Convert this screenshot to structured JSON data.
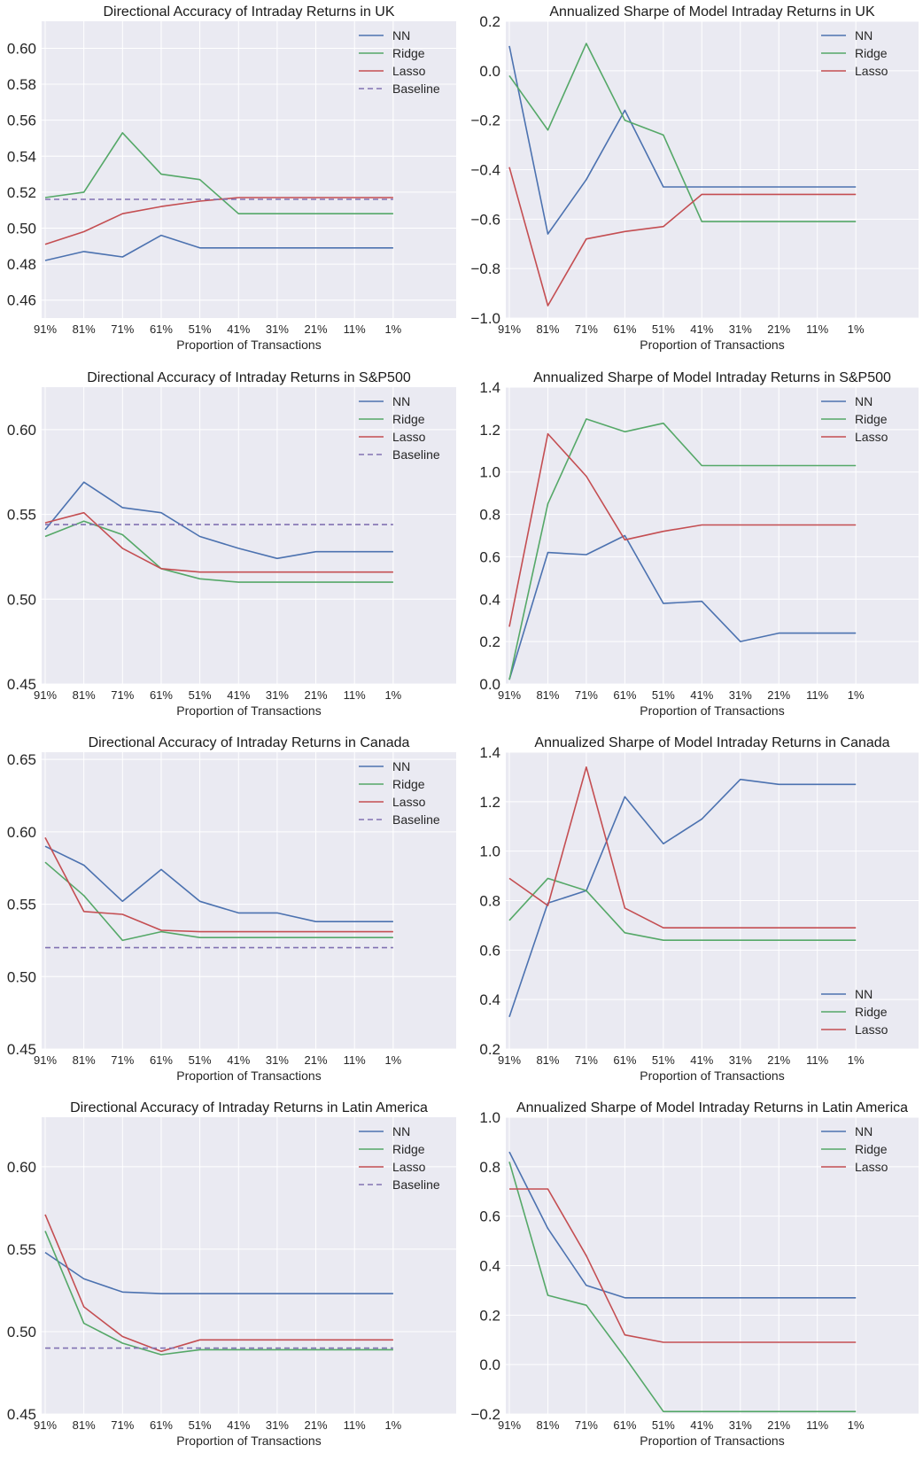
{
  "chart_data": [
    {
      "type": "line",
      "title": "Directional Accuracy of Intraday Returns in UK",
      "xlabel": "Proportion of Transactions",
      "ylabel": "",
      "categories": [
        "91%",
        "81%",
        "71%",
        "61%",
        "51%",
        "41%",
        "31%",
        "21%",
        "11%",
        "1%"
      ],
      "ylim": [
        0.45,
        0.615
      ],
      "yticks": [
        0.46,
        0.48,
        0.5,
        0.52,
        0.54,
        0.56,
        0.58,
        0.6
      ],
      "ytick_labels": [
        "0.46",
        "0.48",
        "0.50",
        "0.52",
        "0.54",
        "0.56",
        "0.58",
        "0.60"
      ],
      "legend": "top-right",
      "grid": true,
      "series": [
        {
          "name": "NN",
          "color": "#4c72b0",
          "dashed": false,
          "values": [
            0.482,
            0.487,
            0.484,
            0.496,
            0.489,
            0.489,
            0.489,
            0.489,
            0.489,
            0.489
          ]
        },
        {
          "name": "Ridge",
          "color": "#55a868",
          "dashed": false,
          "values": [
            0.517,
            0.52,
            0.553,
            0.53,
            0.527,
            0.508,
            0.508,
            0.508,
            0.508,
            0.508
          ]
        },
        {
          "name": "Lasso",
          "color": "#c44e52",
          "dashed": false,
          "values": [
            0.491,
            0.498,
            0.508,
            0.512,
            0.515,
            0.517,
            0.517,
            0.517,
            0.517,
            0.517
          ]
        },
        {
          "name": "Baseline",
          "color": "#8172b2",
          "dashed": true,
          "values": [
            0.516,
            0.516,
            0.516,
            0.516,
            0.516,
            0.516,
            0.516,
            0.516,
            0.516,
            0.516
          ]
        }
      ]
    },
    {
      "type": "line",
      "title": "Annualized Sharpe of Model Intraday Returns in UK",
      "xlabel": "Proportion of Transactions",
      "ylabel": "",
      "categories": [
        "91%",
        "81%",
        "71%",
        "61%",
        "51%",
        "41%",
        "31%",
        "21%",
        "11%",
        "1%"
      ],
      "ylim": [
        -1.0,
        0.2
      ],
      "yticks": [
        -1.0,
        -0.8,
        -0.6,
        -0.4,
        -0.2,
        0.0,
        0.2
      ],
      "ytick_labels": [
        "−1.0",
        "−0.8",
        "−0.6",
        "−0.4",
        "−0.2",
        "0.0",
        "0.2"
      ],
      "legend": "top-right",
      "grid": true,
      "series": [
        {
          "name": "NN",
          "color": "#4c72b0",
          "dashed": false,
          "values": [
            0.1,
            -0.66,
            -0.44,
            -0.16,
            -0.47,
            -0.47,
            -0.47,
            -0.47,
            -0.47,
            -0.47
          ]
        },
        {
          "name": "Ridge",
          "color": "#55a868",
          "dashed": false,
          "values": [
            -0.02,
            -0.24,
            0.11,
            -0.2,
            -0.26,
            -0.61,
            -0.61,
            -0.61,
            -0.61,
            -0.61
          ]
        },
        {
          "name": "Lasso",
          "color": "#c44e52",
          "dashed": false,
          "values": [
            -0.39,
            -0.95,
            -0.68,
            -0.65,
            -0.63,
            -0.5,
            -0.5,
            -0.5,
            -0.5,
            -0.5
          ]
        }
      ]
    },
    {
      "type": "line",
      "title": "Directional Accuracy of Intraday Returns in S&P500",
      "xlabel": "Proportion of Transactions",
      "ylabel": "",
      "categories": [
        "91%",
        "81%",
        "71%",
        "61%",
        "51%",
        "41%",
        "31%",
        "21%",
        "11%",
        "1%"
      ],
      "ylim": [
        0.45,
        0.625
      ],
      "yticks": [
        0.45,
        0.5,
        0.55,
        0.6
      ],
      "ytick_labels": [
        "0.45",
        "0.50",
        "0.55",
        "0.60"
      ],
      "legend": "top-right",
      "grid": true,
      "series": [
        {
          "name": "NN",
          "color": "#4c72b0",
          "dashed": false,
          "values": [
            0.541,
            0.569,
            0.554,
            0.551,
            0.537,
            0.53,
            0.524,
            0.528,
            0.528,
            0.528
          ]
        },
        {
          "name": "Ridge",
          "color": "#55a868",
          "dashed": false,
          "values": [
            0.537,
            0.546,
            0.538,
            0.518,
            0.512,
            0.51,
            0.51,
            0.51,
            0.51,
            0.51
          ]
        },
        {
          "name": "Lasso",
          "color": "#c44e52",
          "dashed": false,
          "values": [
            0.545,
            0.551,
            0.53,
            0.518,
            0.516,
            0.516,
            0.516,
            0.516,
            0.516,
            0.516
          ]
        },
        {
          "name": "Baseline",
          "color": "#8172b2",
          "dashed": true,
          "values": [
            0.544,
            0.544,
            0.544,
            0.544,
            0.544,
            0.544,
            0.544,
            0.544,
            0.544,
            0.544
          ]
        }
      ]
    },
    {
      "type": "line",
      "title": "Annualized Sharpe of Model Intraday Returns in S&P500",
      "xlabel": "Proportion of Transactions",
      "ylabel": "",
      "categories": [
        "91%",
        "81%",
        "71%",
        "61%",
        "51%",
        "41%",
        "31%",
        "21%",
        "11%",
        "1%"
      ],
      "ylim": [
        0.0,
        1.4
      ],
      "yticks": [
        0.0,
        0.2,
        0.4,
        0.6,
        0.8,
        1.0,
        1.2,
        1.4
      ],
      "ytick_labels": [
        "0.0",
        "0.2",
        "0.4",
        "0.6",
        "0.8",
        "1.0",
        "1.2",
        "1.4"
      ],
      "legend": "top-right",
      "grid": true,
      "series": [
        {
          "name": "NN",
          "color": "#4c72b0",
          "dashed": false,
          "values": [
            0.02,
            0.62,
            0.61,
            0.7,
            0.38,
            0.39,
            0.2,
            0.24,
            0.24,
            0.24
          ]
        },
        {
          "name": "Ridge",
          "color": "#55a868",
          "dashed": false,
          "values": [
            0.02,
            0.85,
            1.25,
            1.19,
            1.23,
            1.03,
            1.03,
            1.03,
            1.03,
            1.03
          ]
        },
        {
          "name": "Lasso",
          "color": "#c44e52",
          "dashed": false,
          "values": [
            0.27,
            1.18,
            0.98,
            0.68,
            0.72,
            0.75,
            0.75,
            0.75,
            0.75,
            0.75
          ]
        }
      ]
    },
    {
      "type": "line",
      "title": "Directional Accuracy of Intraday Returns in Canada",
      "xlabel": "Proportion of Transactions",
      "ylabel": "",
      "categories": [
        "91%",
        "81%",
        "71%",
        "61%",
        "51%",
        "41%",
        "31%",
        "21%",
        "11%",
        "1%"
      ],
      "ylim": [
        0.45,
        0.655
      ],
      "yticks": [
        0.45,
        0.5,
        0.55,
        0.6,
        0.65
      ],
      "ytick_labels": [
        "0.45",
        "0.50",
        "0.55",
        "0.60",
        "0.65"
      ],
      "legend": "top-right",
      "grid": true,
      "series": [
        {
          "name": "NN",
          "color": "#4c72b0",
          "dashed": false,
          "values": [
            0.59,
            0.577,
            0.552,
            0.574,
            0.552,
            0.544,
            0.544,
            0.538,
            0.538,
            0.538
          ]
        },
        {
          "name": "Ridge",
          "color": "#55a868",
          "dashed": false,
          "values": [
            0.579,
            0.556,
            0.525,
            0.531,
            0.527,
            0.527,
            0.527,
            0.527,
            0.527,
            0.527
          ]
        },
        {
          "name": "Lasso",
          "color": "#c44e52",
          "dashed": false,
          "values": [
            0.596,
            0.545,
            0.543,
            0.532,
            0.531,
            0.531,
            0.531,
            0.531,
            0.531,
            0.531
          ]
        },
        {
          "name": "Baseline",
          "color": "#8172b2",
          "dashed": true,
          "values": [
            0.52,
            0.52,
            0.52,
            0.52,
            0.52,
            0.52,
            0.52,
            0.52,
            0.52,
            0.52
          ]
        }
      ]
    },
    {
      "type": "line",
      "title": "Annualized Sharpe of Model Intraday Returns in Canada",
      "xlabel": "Proportion of Transactions",
      "ylabel": "",
      "categories": [
        "91%",
        "81%",
        "71%",
        "61%",
        "51%",
        "41%",
        "31%",
        "21%",
        "11%",
        "1%"
      ],
      "ylim": [
        0.2,
        1.4
      ],
      "yticks": [
        0.2,
        0.4,
        0.6,
        0.8,
        1.0,
        1.2,
        1.4
      ],
      "ytick_labels": [
        "0.2",
        "0.4",
        "0.6",
        "0.8",
        "1.0",
        "1.2",
        "1.4"
      ],
      "legend": "bottom-right",
      "grid": true,
      "series": [
        {
          "name": "NN",
          "color": "#4c72b0",
          "dashed": false,
          "values": [
            0.33,
            0.79,
            0.84,
            1.22,
            1.03,
            1.13,
            1.29,
            1.27,
            1.27,
            1.27
          ]
        },
        {
          "name": "Ridge",
          "color": "#55a868",
          "dashed": false,
          "values": [
            0.72,
            0.89,
            0.84,
            0.67,
            0.64,
            0.64,
            0.64,
            0.64,
            0.64,
            0.64
          ]
        },
        {
          "name": "Lasso",
          "color": "#c44e52",
          "dashed": false,
          "values": [
            0.89,
            0.78,
            1.34,
            0.77,
            0.69,
            0.69,
            0.69,
            0.69,
            0.69,
            0.69
          ]
        }
      ]
    },
    {
      "type": "line",
      "title": "Directional Accuracy of Intraday Returns in Latin America",
      "xlabel": "Proportion of Transactions",
      "ylabel": "",
      "categories": [
        "91%",
        "81%",
        "71%",
        "61%",
        "51%",
        "41%",
        "31%",
        "21%",
        "11%",
        "1%"
      ],
      "ylim": [
        0.45,
        0.63
      ],
      "yticks": [
        0.45,
        0.5,
        0.55,
        0.6
      ],
      "ytick_labels": [
        "0.45",
        "0.50",
        "0.55",
        "0.60"
      ],
      "legend": "top-right",
      "grid": true,
      "series": [
        {
          "name": "NN",
          "color": "#4c72b0",
          "dashed": false,
          "values": [
            0.548,
            0.532,
            0.524,
            0.523,
            0.523,
            0.523,
            0.523,
            0.523,
            0.523,
            0.523
          ]
        },
        {
          "name": "Ridge",
          "color": "#55a868",
          "dashed": false,
          "values": [
            0.561,
            0.505,
            0.493,
            0.486,
            0.489,
            0.489,
            0.489,
            0.489,
            0.489,
            0.489
          ]
        },
        {
          "name": "Lasso",
          "color": "#c44e52",
          "dashed": false,
          "values": [
            0.571,
            0.515,
            0.497,
            0.488,
            0.495,
            0.495,
            0.495,
            0.495,
            0.495,
            0.495
          ]
        },
        {
          "name": "Baseline",
          "color": "#8172b2",
          "dashed": true,
          "values": [
            0.49,
            0.49,
            0.49,
            0.49,
            0.49,
            0.49,
            0.49,
            0.49,
            0.49,
            0.49
          ]
        }
      ]
    },
    {
      "type": "line",
      "title": "Annualized Sharpe of Model Intraday Returns in Latin America",
      "xlabel": "Proportion of Transactions",
      "ylabel": "",
      "categories": [
        "91%",
        "81%",
        "71%",
        "61%",
        "51%",
        "41%",
        "31%",
        "21%",
        "11%",
        "1%"
      ],
      "ylim": [
        -0.2,
        1.0
      ],
      "yticks": [
        -0.2,
        0.0,
        0.2,
        0.4,
        0.6,
        0.8,
        1.0
      ],
      "ytick_labels": [
        "−0.2",
        "0.0",
        "0.2",
        "0.4",
        "0.6",
        "0.8",
        "1.0"
      ],
      "legend": "top-right",
      "grid": true,
      "series": [
        {
          "name": "NN",
          "color": "#4c72b0",
          "dashed": false,
          "values": [
            0.86,
            0.55,
            0.32,
            0.27,
            0.27,
            0.27,
            0.27,
            0.27,
            0.27,
            0.27
          ]
        },
        {
          "name": "Ridge",
          "color": "#55a868",
          "dashed": false,
          "values": [
            0.82,
            0.28,
            0.24,
            0.03,
            -0.19,
            -0.19,
            -0.19,
            -0.19,
            -0.19,
            -0.19
          ]
        },
        {
          "name": "Lasso",
          "color": "#c44e52",
          "dashed": false,
          "values": [
            0.71,
            0.71,
            0.44,
            0.12,
            0.09,
            0.09,
            0.09,
            0.09,
            0.09,
            0.09
          ]
        }
      ]
    }
  ],
  "colors": {
    "plot_background": "#eaeaf2",
    "grid": "#ffffff",
    "NN": "#4c72b0",
    "Ridge": "#55a868",
    "Lasso": "#c44e52",
    "Baseline": "#8172b2"
  }
}
